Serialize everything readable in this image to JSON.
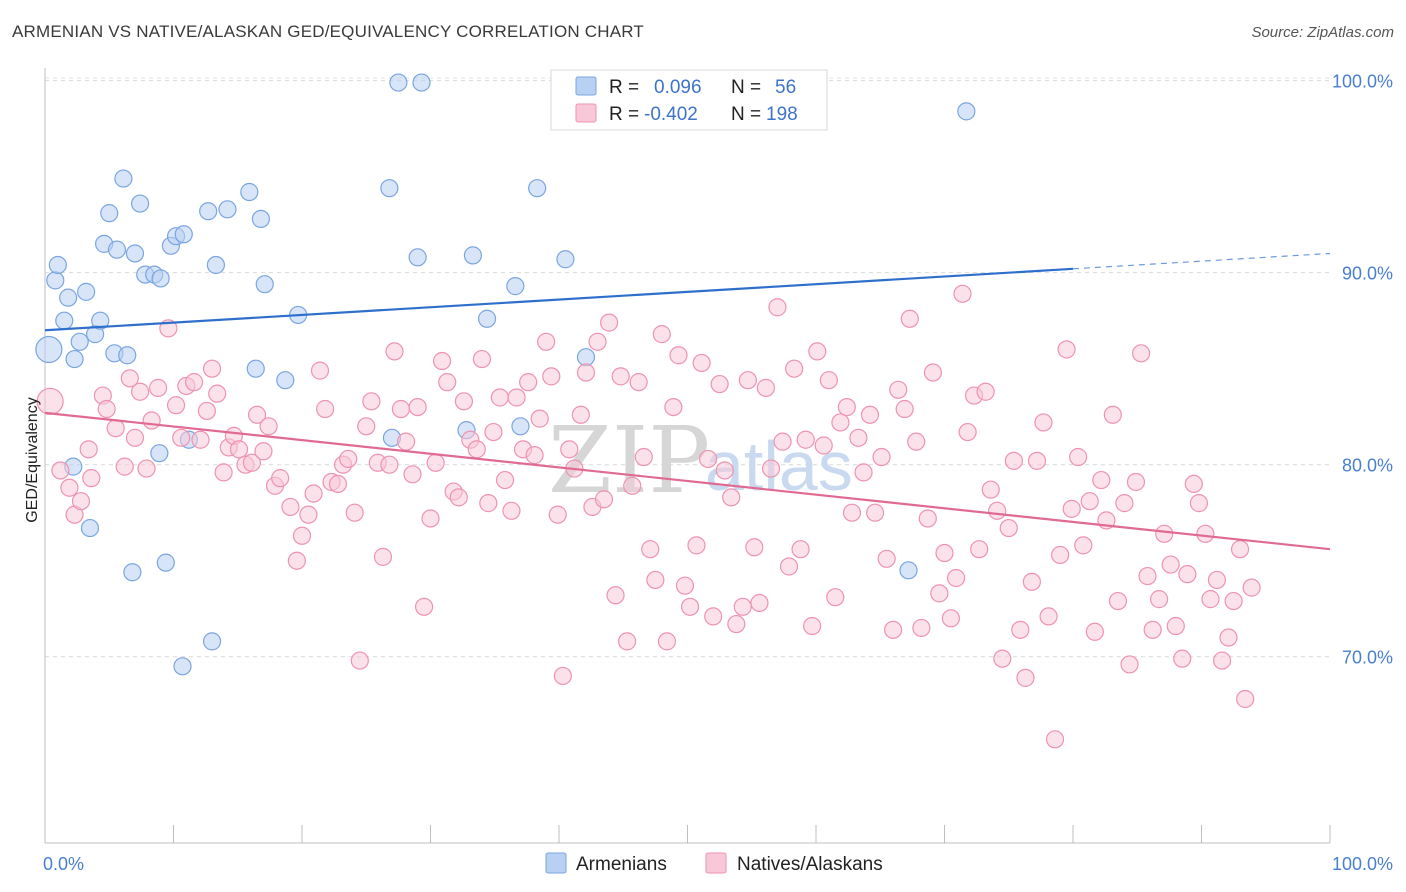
{
  "title": "ARMENIAN VS NATIVE/ALASKAN GED/EQUIVALENCY CORRELATION CHART",
  "source": "Source: ZipAtlas.com",
  "watermark": {
    "zip": "ZIP",
    "atlas": "atlas"
  },
  "legend": {
    "r_label": "R =",
    "n_label": "N =",
    "rows": [
      {
        "r": "0.096",
        "n": "56"
      },
      {
        "r": "-0.402",
        "n": "198"
      }
    ]
  },
  "colors": {
    "armenians": "#7aa6e0",
    "armenians_fill": "#b8d0f2",
    "armenians_line": "#2f6fcc",
    "natives": "#ee93b0",
    "natives_fill": "#f8c8d8",
    "natives_line": "#e06a94",
    "tick": "#4a7fd0"
  },
  "chart_data": {
    "type": "scatter",
    "title": "ARMENIAN VS NATIVE/ALASKAN GED/EQUIVALENCY CORRELATION CHART",
    "xlabel": "",
    "ylabel": "GED/Equivalency",
    "xlim": [
      0,
      100
    ],
    "ylim": [
      60.3,
      101.7
    ],
    "x_ticks": [
      "0.0%",
      "100.0%"
    ],
    "y_ticks": [
      {
        "value": 100,
        "label": "100.0%"
      },
      {
        "value": 90,
        "label": "90.0%"
      },
      {
        "value": 80,
        "label": "80.0%"
      },
      {
        "value": 70,
        "label": "70.0%"
      }
    ],
    "grid": true,
    "legend_position": "top-center",
    "series": [
      {
        "name": "Armenians",
        "r": 0.096,
        "n": 56,
        "trend": {
          "x0": 0,
          "y0": 87.0,
          "x1": 80,
          "y1": 90.2,
          "dash_to_x": 100,
          "dash_to_y": 91.0
        },
        "points": [
          [
            0.3,
            86.0
          ],
          [
            0.8,
            89.6
          ],
          [
            1.0,
            90.4
          ],
          [
            1.5,
            87.5
          ],
          [
            1.8,
            88.7
          ],
          [
            2.3,
            85.5
          ],
          [
            2.7,
            86.4
          ],
          [
            3.2,
            89.0
          ],
          [
            3.9,
            86.8
          ],
          [
            4.3,
            87.5
          ],
          [
            4.6,
            91.5
          ],
          [
            5.0,
            93.1
          ],
          [
            5.4,
            85.8
          ],
          [
            5.6,
            91.2
          ],
          [
            6.1,
            94.9
          ],
          [
            6.4,
            85.7
          ],
          [
            7.0,
            91.0
          ],
          [
            7.4,
            93.6
          ],
          [
            7.8,
            89.9
          ],
          [
            8.5,
            89.9
          ],
          [
            9.0,
            89.7
          ],
          [
            9.8,
            91.4
          ],
          [
            10.2,
            91.9
          ],
          [
            10.8,
            92.0
          ],
          [
            12.7,
            93.2
          ],
          [
            13.3,
            90.4
          ],
          [
            14.2,
            93.3
          ],
          [
            15.9,
            94.2
          ],
          [
            16.8,
            92.8
          ],
          [
            17.1,
            89.4
          ],
          [
            19.7,
            87.8
          ],
          [
            26.8,
            94.4
          ],
          [
            27.5,
            99.9
          ],
          [
            29.0,
            90.8
          ],
          [
            29.3,
            99.9
          ],
          [
            33.3,
            90.9
          ],
          [
            34.4,
            87.6
          ],
          [
            36.6,
            89.3
          ],
          [
            38.3,
            94.4
          ],
          [
            40.5,
            90.7
          ],
          [
            42.1,
            85.6
          ],
          [
            2.2,
            79.9
          ],
          [
            3.5,
            76.7
          ],
          [
            6.8,
            74.4
          ],
          [
            8.9,
            80.6
          ],
          [
            9.4,
            74.9
          ],
          [
            10.7,
            69.5
          ],
          [
            11.2,
            81.3
          ],
          [
            13.0,
            70.8
          ],
          [
            16.4,
            85.0
          ],
          [
            18.7,
            84.4
          ],
          [
            27.0,
            81.4
          ],
          [
            32.8,
            81.8
          ],
          [
            37.0,
            82.0
          ],
          [
            67.2,
            74.5
          ],
          [
            71.7,
            98.4
          ]
        ]
      },
      {
        "name": "Natives/Alaskans",
        "r": -0.402,
        "n": 198,
        "trend": {
          "x0": 0,
          "y0": 82.7,
          "x1": 100,
          "y1": 75.6
        },
        "points": [
          [
            0.4,
            83.3
          ],
          [
            1.2,
            79.7
          ],
          [
            1.9,
            78.8
          ],
          [
            2.3,
            77.4
          ],
          [
            2.8,
            78.1
          ],
          [
            3.4,
            80.8
          ],
          [
            3.6,
            79.3
          ],
          [
            4.5,
            83.6
          ],
          [
            4.8,
            82.9
          ],
          [
            5.5,
            81.9
          ],
          [
            6.2,
            79.9
          ],
          [
            6.6,
            84.5
          ],
          [
            7.0,
            81.4
          ],
          [
            7.4,
            83.8
          ],
          [
            7.9,
            79.8
          ],
          [
            8.3,
            82.3
          ],
          [
            8.8,
            84.0
          ],
          [
            9.6,
            87.1
          ],
          [
            10.2,
            83.1
          ],
          [
            10.6,
            81.4
          ],
          [
            11.0,
            84.1
          ],
          [
            11.6,
            84.3
          ],
          [
            12.1,
            81.3
          ],
          [
            12.6,
            82.8
          ],
          [
            13.0,
            85.0
          ],
          [
            13.4,
            83.7
          ],
          [
            13.9,
            79.6
          ],
          [
            14.3,
            80.9
          ],
          [
            14.7,
            81.5
          ],
          [
            15.1,
            80.8
          ],
          [
            15.6,
            80.0
          ],
          [
            16.1,
            80.1
          ],
          [
            16.5,
            82.6
          ],
          [
            17.0,
            80.7
          ],
          [
            17.4,
            82.0
          ],
          [
            17.9,
            78.9
          ],
          [
            18.3,
            79.3
          ],
          [
            19.1,
            77.8
          ],
          [
            19.6,
            75.0
          ],
          [
            20.0,
            76.3
          ],
          [
            20.5,
            77.4
          ],
          [
            20.9,
            78.5
          ],
          [
            21.4,
            84.9
          ],
          [
            21.8,
            82.9
          ],
          [
            22.3,
            79.1
          ],
          [
            22.8,
            79.0
          ],
          [
            23.2,
            80.0
          ],
          [
            23.6,
            80.3
          ],
          [
            24.1,
            77.5
          ],
          [
            24.5,
            69.8
          ],
          [
            25.0,
            82.0
          ],
          [
            25.4,
            83.3
          ],
          [
            25.9,
            80.1
          ],
          [
            26.3,
            75.2
          ],
          [
            26.8,
            80.0
          ],
          [
            27.2,
            85.9
          ],
          [
            27.7,
            82.9
          ],
          [
            28.1,
            81.2
          ],
          [
            28.6,
            79.5
          ],
          [
            29.0,
            83.0
          ],
          [
            29.5,
            72.6
          ],
          [
            30.0,
            77.2
          ],
          [
            30.4,
            80.1
          ],
          [
            30.9,
            85.4
          ],
          [
            31.3,
            84.3
          ],
          [
            31.8,
            78.6
          ],
          [
            32.2,
            78.3
          ],
          [
            32.6,
            83.3
          ],
          [
            33.1,
            81.3
          ],
          [
            33.6,
            80.8
          ],
          [
            34.0,
            85.5
          ],
          [
            34.5,
            78.0
          ],
          [
            34.9,
            81.7
          ],
          [
            35.4,
            83.5
          ],
          [
            35.8,
            79.2
          ],
          [
            36.3,
            77.6
          ],
          [
            36.7,
            83.5
          ],
          [
            37.2,
            80.8
          ],
          [
            37.6,
            84.3
          ],
          [
            38.1,
            80.5
          ],
          [
            38.5,
            82.4
          ],
          [
            39.0,
            86.4
          ],
          [
            39.4,
            84.6
          ],
          [
            39.9,
            77.4
          ],
          [
            40.3,
            69.0
          ],
          [
            40.8,
            80.8
          ],
          [
            41.2,
            79.8
          ],
          [
            41.7,
            82.6
          ],
          [
            42.1,
            84.8
          ],
          [
            42.6,
            77.8
          ],
          [
            43.0,
            86.4
          ],
          [
            43.5,
            78.2
          ],
          [
            43.9,
            87.4
          ],
          [
            44.4,
            73.2
          ],
          [
            44.8,
            84.6
          ],
          [
            45.3,
            70.8
          ],
          [
            45.7,
            78.9
          ],
          [
            46.2,
            84.3
          ],
          [
            46.6,
            80.4
          ],
          [
            47.1,
            75.6
          ],
          [
            47.5,
            74.0
          ],
          [
            48.0,
            86.8
          ],
          [
            48.4,
            70.8
          ],
          [
            48.9,
            83.0
          ],
          [
            49.3,
            85.7
          ],
          [
            49.8,
            73.7
          ],
          [
            50.2,
            72.6
          ],
          [
            50.7,
            75.8
          ],
          [
            51.1,
            85.3
          ],
          [
            51.6,
            80.3
          ],
          [
            52.0,
            72.1
          ],
          [
            52.5,
            84.2
          ],
          [
            52.9,
            79.7
          ],
          [
            53.4,
            78.3
          ],
          [
            53.8,
            71.7
          ],
          [
            54.3,
            72.6
          ],
          [
            54.7,
            84.4
          ],
          [
            55.2,
            75.7
          ],
          [
            55.6,
            72.8
          ],
          [
            56.1,
            84.0
          ],
          [
            56.5,
            79.8
          ],
          [
            57.0,
            88.2
          ],
          [
            57.4,
            81.2
          ],
          [
            57.9,
            74.7
          ],
          [
            58.3,
            85.0
          ],
          [
            58.8,
            75.6
          ],
          [
            59.2,
            81.3
          ],
          [
            59.7,
            71.6
          ],
          [
            60.1,
            85.9
          ],
          [
            60.6,
            81.0
          ],
          [
            61.0,
            84.4
          ],
          [
            61.5,
            73.1
          ],
          [
            61.9,
            82.2
          ],
          [
            62.4,
            83.0
          ],
          [
            62.8,
            77.5
          ],
          [
            63.3,
            81.4
          ],
          [
            63.7,
            79.6
          ],
          [
            64.2,
            82.6
          ],
          [
            64.6,
            77.5
          ],
          [
            65.1,
            80.4
          ],
          [
            65.5,
            75.1
          ],
          [
            66.0,
            71.4
          ],
          [
            66.4,
            83.9
          ],
          [
            66.9,
            82.9
          ],
          [
            67.3,
            87.6
          ],
          [
            67.8,
            81.2
          ],
          [
            68.2,
            71.5
          ],
          [
            68.7,
            77.2
          ],
          [
            69.1,
            84.8
          ],
          [
            69.6,
            73.3
          ],
          [
            70.0,
            75.4
          ],
          [
            70.5,
            72.0
          ],
          [
            70.9,
            74.1
          ],
          [
            71.4,
            88.9
          ],
          [
            71.8,
            81.7
          ],
          [
            72.3,
            83.6
          ],
          [
            72.7,
            75.6
          ],
          [
            73.2,
            83.8
          ],
          [
            73.6,
            78.7
          ],
          [
            74.1,
            77.6
          ],
          [
            74.5,
            69.9
          ],
          [
            75.0,
            76.7
          ],
          [
            75.4,
            80.2
          ],
          [
            75.9,
            71.4
          ],
          [
            76.3,
            68.9
          ],
          [
            76.8,
            73.9
          ],
          [
            77.2,
            80.2
          ],
          [
            77.7,
            82.2
          ],
          [
            78.1,
            72.1
          ],
          [
            78.6,
            65.7
          ],
          [
            79.0,
            75.3
          ],
          [
            79.5,
            86.0
          ],
          [
            79.9,
            77.7
          ],
          [
            80.4,
            80.4
          ],
          [
            80.8,
            75.8
          ],
          [
            81.3,
            78.1
          ],
          [
            81.7,
            71.3
          ],
          [
            82.2,
            79.2
          ],
          [
            82.6,
            77.1
          ],
          [
            83.1,
            82.6
          ],
          [
            83.5,
            72.9
          ],
          [
            84.0,
            78.0
          ],
          [
            84.4,
            69.6
          ],
          [
            84.9,
            79.1
          ],
          [
            85.3,
            85.8
          ],
          [
            85.8,
            74.2
          ],
          [
            86.2,
            71.4
          ],
          [
            86.7,
            73.0
          ],
          [
            87.1,
            76.4
          ],
          [
            87.6,
            74.8
          ],
          [
            88.0,
            71.6
          ],
          [
            88.5,
            69.9
          ],
          [
            88.9,
            74.3
          ],
          [
            89.4,
            79.0
          ],
          [
            89.8,
            78.0
          ],
          [
            90.3,
            76.4
          ],
          [
            90.7,
            73.0
          ],
          [
            91.2,
            74.0
          ],
          [
            91.6,
            69.8
          ],
          [
            92.1,
            71.0
          ],
          [
            92.5,
            72.9
          ],
          [
            93.0,
            75.6
          ],
          [
            93.4,
            67.8
          ],
          [
            93.9,
            73.6
          ]
        ]
      }
    ]
  },
  "bottom_legend": [
    {
      "label": "Armenians"
    },
    {
      "label": "Natives/Alaskans"
    }
  ]
}
